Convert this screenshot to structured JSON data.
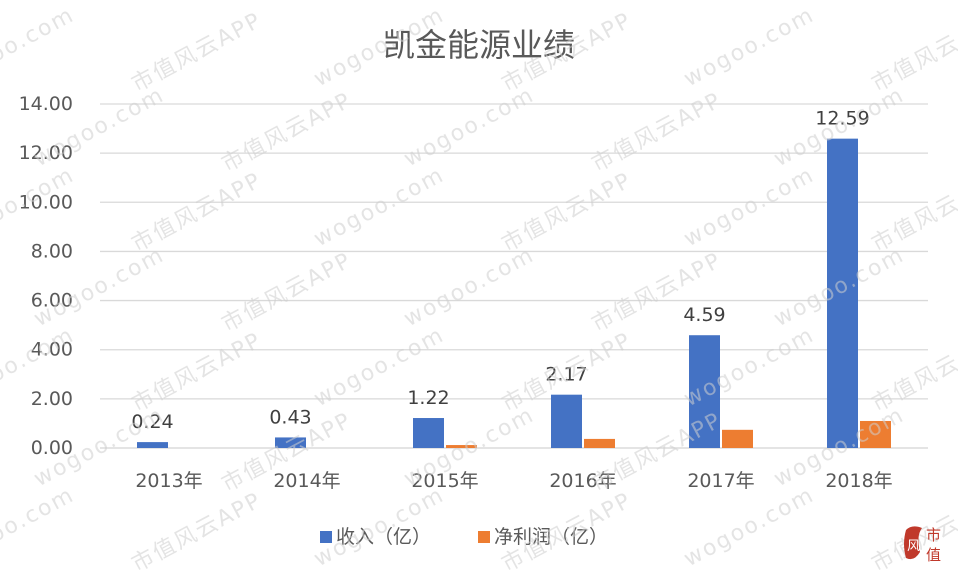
{
  "chart_data": {
    "type": "bar",
    "title": "凯金能源业绩",
    "categories": [
      "2013年",
      "2014年",
      "2015年",
      "2016年",
      "2017年",
      "2018年"
    ],
    "yticks": [
      "14.00",
      "12.00",
      "10.00",
      "8.00",
      "6.00",
      "4.00",
      "2.00",
      "0.00"
    ],
    "ylim": [
      0,
      14
    ],
    "grid": true,
    "legend_position": "bottom",
    "series": [
      {
        "name": "收入（亿）",
        "color": "#4472c4",
        "values": [
          0.24,
          0.43,
          1.22,
          2.17,
          4.59,
          12.59
        ],
        "labels": [
          "0.24",
          "0.43",
          "1.22",
          "2.17",
          "4.59",
          "12.59"
        ]
      },
      {
        "name": "净利润（亿）",
        "color": "#ed7d31",
        "values": [
          0.0,
          0.0,
          0.12,
          0.37,
          0.74,
          1.1
        ],
        "labels": []
      }
    ]
  },
  "watermark": {
    "text_cn": "市值风云APP",
    "text_en": "wogoo.com"
  },
  "badge": {
    "chars": [
      "风",
      "市",
      "值"
    ],
    "color": "#c0392b"
  }
}
